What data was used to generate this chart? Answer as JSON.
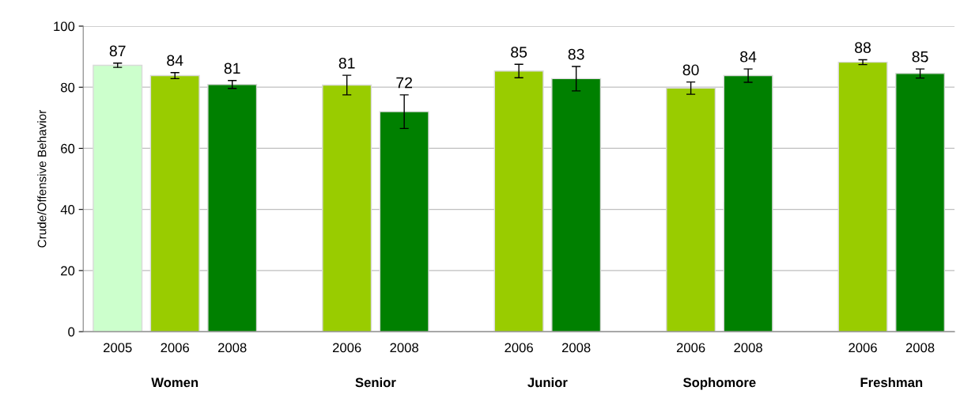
{
  "chart_data": {
    "type": "bar",
    "ylabel": "Crude/Offensive Behavior",
    "categories": [
      "2005",
      "2006",
      "2008",
      null,
      "2006",
      "2008",
      null,
      "2006",
      "2008",
      null,
      "2006",
      "2008",
      null,
      "2006",
      "2008"
    ],
    "values": [
      87.2,
      83.8,
      80.9,
      null,
      80.7,
      72.0,
      null,
      85.3,
      82.8,
      null,
      79.7,
      83.8,
      null,
      88.2,
      84.5
    ],
    "errors": [
      0.7,
      1.0,
      1.3,
      null,
      3.2,
      5.5,
      null,
      2.2,
      4.0,
      null,
      2.0,
      2.2,
      null,
      0.8,
      1.5
    ],
    "value_labels": [
      "87",
      "84",
      "81",
      null,
      "81",
      "72",
      null,
      "85",
      "83",
      null,
      "80",
      "84",
      null,
      "88",
      "85"
    ],
    "colors": [
      "#ccffcc",
      "#99cc00",
      "#008000",
      null,
      "#99cc00",
      "#008000",
      null,
      "#99cc00",
      "#008000",
      null,
      "#99cc00",
      "#008000",
      null,
      "#99cc00",
      "#008000"
    ],
    "annotations": [
      "Women",
      "Senior",
      "Junior",
      "Sophomore",
      "Freshman"
    ],
    "ylim": [
      0,
      100
    ],
    "yticks": [
      0,
      20,
      40,
      60,
      80,
      100
    ],
    "grid": "y"
  }
}
